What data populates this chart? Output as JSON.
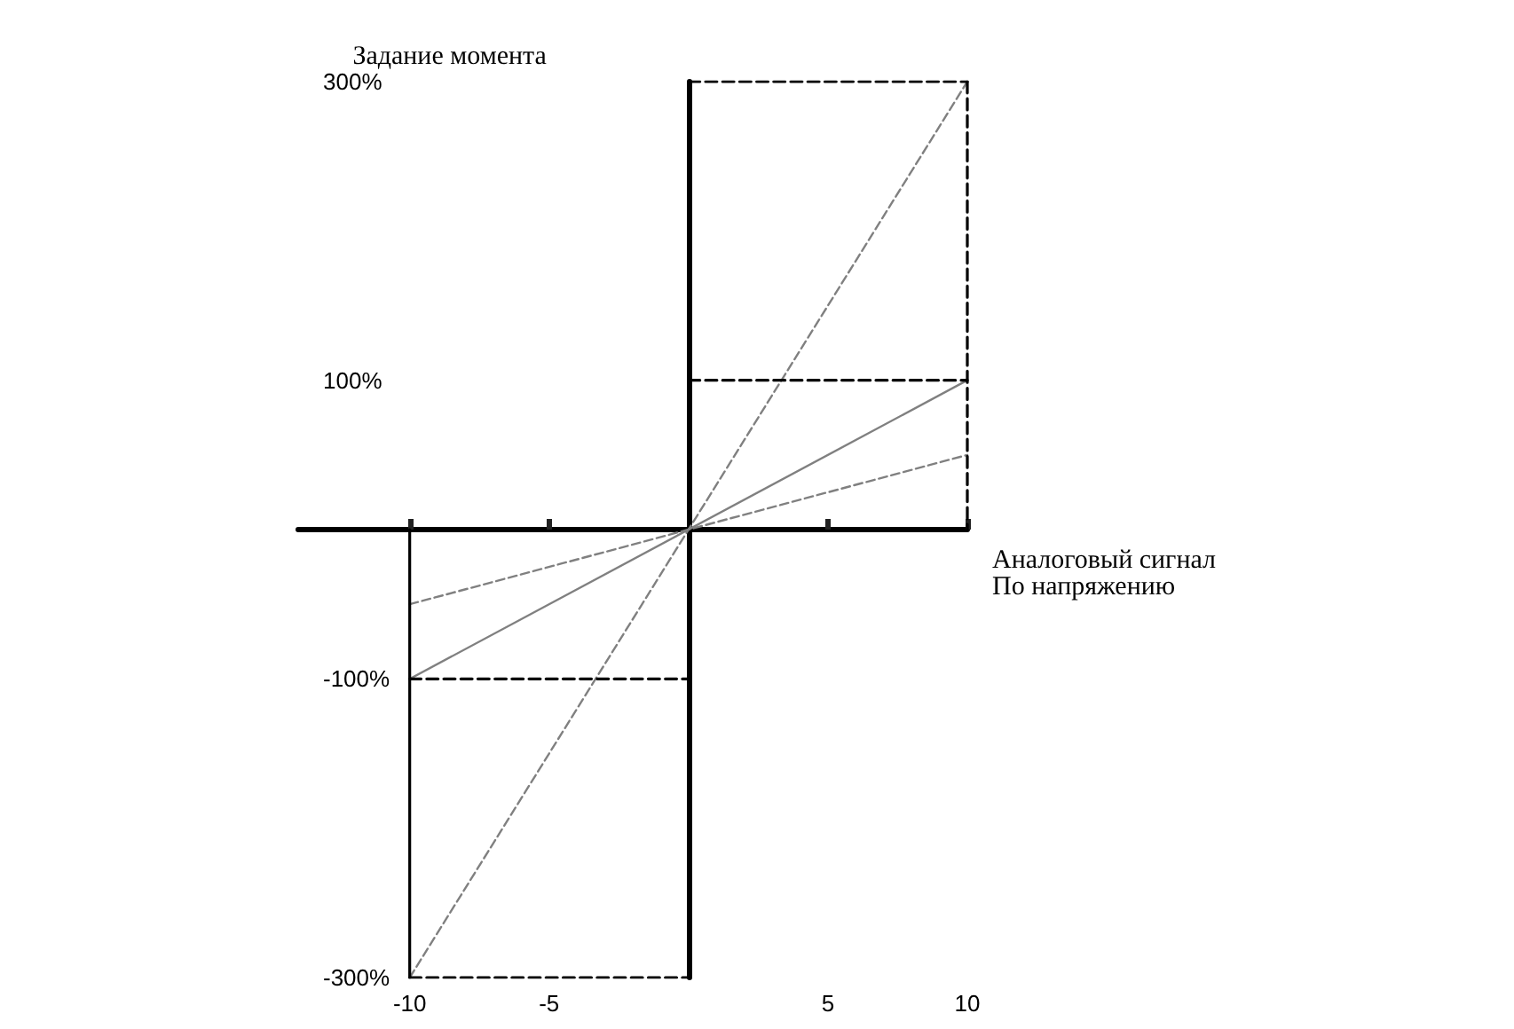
{
  "chart_data": {
    "type": "line",
    "xlabel": "Аналоговый сигнал\nПо напряжению",
    "ylabel": "Задание момента",
    "xlim": [
      -14,
      10
    ],
    "xticks": [
      -10,
      -5,
      5,
      10
    ],
    "ylim": [
      -300,
      300
    ],
    "yticks": [
      {
        "value": -300,
        "label": "-300%"
      },
      {
        "value": -100,
        "label": "-100%"
      },
      {
        "value": 100,
        "label": "100%"
      },
      {
        "value": 300,
        "label": "300%"
      }
    ],
    "marker": "none",
    "series": [
      {
        "color": "#808080",
        "x": [
          -10,
          10
        ],
        "values": [
          -100,
          100
        ],
        "line_style": "solid"
      },
      {
        "color": "#808080",
        "x": [
          -10,
          10
        ],
        "values": [
          -300,
          300
        ],
        "line_style": "dashed"
      },
      {
        "color": "#808080",
        "x": [
          -10,
          10
        ],
        "values": [
          -50,
          50
        ],
        "line_style": "dashed"
      },
      {
        "color": "#000000",
        "x": [
          0,
          10
        ],
        "values": [
          300,
          300
        ],
        "line_style": "dashed"
      },
      {
        "color": "#000000",
        "x": [
          0,
          10
        ],
        "values": [
          100,
          100
        ],
        "line_style": "dashed"
      },
      {
        "color": "#000000",
        "x": [
          10,
          10
        ],
        "values": [
          300,
          0
        ],
        "line_style": "dashed"
      },
      {
        "color": "#000000",
        "x": [
          -10,
          -10
        ],
        "values": [
          0,
          -300
        ],
        "line_style": "solid"
      },
      {
        "color": "#000000",
        "x": [
          -10,
          0
        ],
        "values": [
          -100,
          -100
        ],
        "line_style": "dashed"
      },
      {
        "color": "#000000",
        "x": [
          -10,
          0
        ],
        "values": [
          -300,
          -300
        ],
        "line_style": "dashed"
      }
    ]
  }
}
